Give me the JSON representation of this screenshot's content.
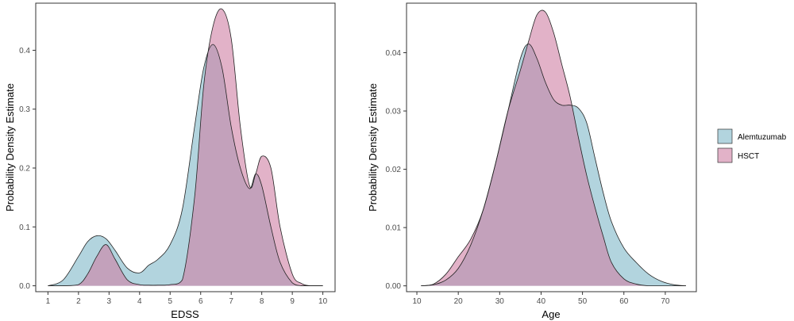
{
  "legend": {
    "placement": "right",
    "entries": [
      {
        "name": "Alemtuzumab",
        "color": "#7fb8c8"
      },
      {
        "name": "HSCT",
        "color": "#cf7fa4"
      }
    ]
  },
  "overlap_color": "#8e7aa3",
  "chart_data": [
    {
      "type": "area",
      "subtype": "density",
      "title": "",
      "xlabel": "EDSS",
      "ylabel": "Probability Density Estimate",
      "xlim": [
        0.6,
        10.4
      ],
      "ylim": [
        -0.01,
        0.48
      ],
      "xticks": [
        1,
        2,
        3,
        4,
        5,
        6,
        7,
        8,
        9,
        10
      ],
      "xtick_labels": [
        "1",
        "2",
        "3",
        "4",
        "5",
        "6",
        "7",
        "8",
        "9",
        "10"
      ],
      "yticks": [
        0.0,
        0.1,
        0.2,
        0.3,
        0.4
      ],
      "ytick_labels": [
        "0.0",
        "0.1",
        "0.2",
        "0.3",
        "0.4"
      ],
      "grid": false,
      "x": [
        1.0,
        1.5,
        2.0,
        2.3,
        2.6,
        2.9,
        3.2,
        3.6,
        4.0,
        4.3,
        4.6,
        5.0,
        5.4,
        5.8,
        6.1,
        6.4,
        6.7,
        7.0,
        7.3,
        7.6,
        7.8,
        8.0,
        8.3,
        8.6,
        9.0,
        9.3,
        9.6,
        10.0
      ],
      "series": [
        {
          "name": "Alemtuzumab",
          "values": [
            0.0,
            0.01,
            0.05,
            0.075,
            0.085,
            0.08,
            0.06,
            0.03,
            0.022,
            0.035,
            0.045,
            0.07,
            0.13,
            0.27,
            0.37,
            0.41,
            0.37,
            0.27,
            0.2,
            0.165,
            0.19,
            0.17,
            0.1,
            0.04,
            0.005,
            0.0,
            0.0,
            0.0
          ]
        },
        {
          "name": "HSCT",
          "values": [
            0.0,
            0.0,
            0.002,
            0.02,
            0.05,
            0.07,
            0.045,
            0.01,
            0.002,
            0.001,
            0.001,
            0.002,
            0.01,
            0.15,
            0.34,
            0.44,
            0.47,
            0.42,
            0.27,
            0.17,
            0.19,
            0.22,
            0.2,
            0.1,
            0.02,
            0.004,
            0.0,
            0.0
          ]
        }
      ]
    },
    {
      "type": "area",
      "subtype": "density",
      "title": "",
      "xlabel": "Age",
      "ylabel": "Probability Density Estimate",
      "xlim": [
        7.5,
        77.5
      ],
      "ylim": [
        -0.001,
        0.0485
      ],
      "xticks": [
        10,
        20,
        30,
        40,
        50,
        60,
        70
      ],
      "xtick_labels": [
        "10",
        "20",
        "30",
        "40",
        "50",
        "60",
        "70"
      ],
      "yticks": [
        0.0,
        0.01,
        0.02,
        0.03,
        0.04
      ],
      "ytick_labels": [
        "0.00",
        "0.01",
        "0.02",
        "0.03",
        "0.04"
      ],
      "grid": false,
      "x": [
        11,
        14,
        17,
        20,
        23,
        26,
        29,
        32,
        35,
        37,
        39,
        41,
        43,
        45,
        47,
        49,
        51,
        53,
        55,
        57,
        60,
        63,
        66,
        69,
        72,
        75
      ],
      "series": [
        {
          "name": "Alemtuzumab",
          "values": [
            0.0,
            0.0002,
            0.001,
            0.003,
            0.007,
            0.013,
            0.021,
            0.03,
            0.039,
            0.0415,
            0.039,
            0.035,
            0.032,
            0.031,
            0.031,
            0.0305,
            0.028,
            0.022,
            0.016,
            0.011,
            0.0065,
            0.004,
            0.002,
            0.0008,
            0.0002,
            0.0
          ]
        },
        {
          "name": "HSCT",
          "values": [
            0.0,
            0.0003,
            0.002,
            0.005,
            0.008,
            0.013,
            0.021,
            0.03,
            0.037,
            0.042,
            0.0465,
            0.047,
            0.0435,
            0.038,
            0.0325,
            0.0255,
            0.019,
            0.0135,
            0.0085,
            0.004,
            0.0012,
            0.0003,
            0.0,
            0.0,
            0.0,
            0.0
          ]
        }
      ]
    }
  ]
}
